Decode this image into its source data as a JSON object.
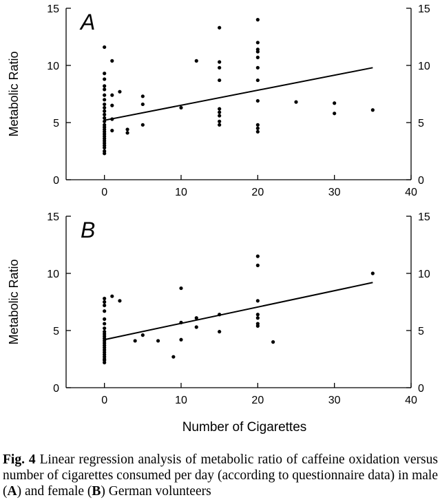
{
  "xlabel": "Number of Cigarettes",
  "caption": {
    "label": "Fig. 4",
    "text": " Linear regression analysis of metabolic ratio of caffeine oxidation versus number of cigarettes consumed per day (according to questionnaire data) in male (",
    "a": "A",
    "mid": ") and female (",
    "b": "B",
    "end": ") German volunteers"
  },
  "chart_data": [
    {
      "type": "scatter",
      "panel_label": "A",
      "ylabel": "Metabolic Ratio",
      "xlim": [
        -5,
        40
      ],
      "ylim": [
        0,
        15
      ],
      "x_ticks": [
        0,
        10,
        20,
        30,
        40
      ],
      "y_ticks": [
        0,
        5,
        10,
        15
      ],
      "points": [
        [
          0,
          11.6
        ],
        [
          0,
          9.3
        ],
        [
          0,
          8.8
        ],
        [
          0,
          8.2
        ],
        [
          0,
          7.9
        ],
        [
          0,
          7.4
        ],
        [
          0,
          7.0
        ],
        [
          0,
          6.6
        ],
        [
          0,
          6.3
        ],
        [
          0,
          6.0
        ],
        [
          0,
          5.7
        ],
        [
          0,
          5.4
        ],
        [
          0,
          5.1
        ],
        [
          0,
          4.8
        ],
        [
          0,
          4.6
        ],
        [
          0,
          4.4
        ],
        [
          0,
          4.2
        ],
        [
          0,
          4.0
        ],
        [
          0,
          3.8
        ],
        [
          0,
          3.6
        ],
        [
          0,
          3.4
        ],
        [
          0,
          3.2
        ],
        [
          0,
          3.0
        ],
        [
          0,
          2.8
        ],
        [
          0,
          2.5
        ],
        [
          0,
          2.3
        ],
        [
          1,
          10.4
        ],
        [
          1,
          7.4
        ],
        [
          1,
          6.5
        ],
        [
          1,
          5.3
        ],
        [
          1,
          4.3
        ],
        [
          2,
          7.7
        ],
        [
          3,
          4.4
        ],
        [
          3,
          4.1
        ],
        [
          5,
          7.3
        ],
        [
          5,
          6.6
        ],
        [
          5,
          4.8
        ],
        [
          10,
          6.3
        ],
        [
          12,
          10.4
        ],
        [
          15,
          13.3
        ],
        [
          15,
          10.3
        ],
        [
          15,
          9.8
        ],
        [
          15,
          8.7
        ],
        [
          15,
          6.2
        ],
        [
          15,
          5.9
        ],
        [
          15,
          5.6
        ],
        [
          15,
          5.1
        ],
        [
          15,
          4.8
        ],
        [
          20,
          14.0
        ],
        [
          20,
          12.0
        ],
        [
          20,
          11.4
        ],
        [
          20,
          11.2
        ],
        [
          20,
          10.7
        ],
        [
          20,
          9.8
        ],
        [
          20,
          8.7
        ],
        [
          20,
          6.9
        ],
        [
          20,
          4.8
        ],
        [
          20,
          4.5
        ],
        [
          20,
          4.2
        ],
        [
          25,
          6.8
        ],
        [
          30,
          6.7
        ],
        [
          30,
          5.8
        ],
        [
          35,
          6.1
        ]
      ],
      "regression": {
        "x": [
          0,
          35
        ],
        "y": [
          5.2,
          9.8
        ]
      }
    },
    {
      "type": "scatter",
      "panel_label": "B",
      "ylabel": "Metabolic Ratio",
      "xlim": [
        -5,
        40
      ],
      "ylim": [
        0,
        15
      ],
      "x_ticks": [
        0,
        10,
        20,
        30,
        40
      ],
      "y_ticks": [
        0,
        5,
        10,
        15
      ],
      "points": [
        [
          0,
          7.8
        ],
        [
          0,
          7.5
        ],
        [
          0,
          7.2
        ],
        [
          0,
          6.7
        ],
        [
          0,
          6.0
        ],
        [
          0,
          5.6
        ],
        [
          0,
          5.2
        ],
        [
          0,
          4.9
        ],
        [
          0,
          4.7
        ],
        [
          0,
          4.5
        ],
        [
          0,
          4.3
        ],
        [
          0,
          4.1
        ],
        [
          0,
          3.9
        ],
        [
          0,
          3.7
        ],
        [
          0,
          3.5
        ],
        [
          0,
          3.3
        ],
        [
          0,
          3.1
        ],
        [
          0,
          2.9
        ],
        [
          0,
          2.7
        ],
        [
          0,
          2.5
        ],
        [
          0,
          2.4
        ],
        [
          0,
          2.2
        ],
        [
          1,
          8.0
        ],
        [
          2,
          7.6
        ],
        [
          4,
          4.1
        ],
        [
          5,
          4.6
        ],
        [
          7,
          4.1
        ],
        [
          9,
          2.7
        ],
        [
          10,
          8.7
        ],
        [
          10,
          5.7
        ],
        [
          10,
          4.2
        ],
        [
          12,
          6.1
        ],
        [
          12,
          5.3
        ],
        [
          15,
          6.4
        ],
        [
          15,
          4.9
        ],
        [
          20,
          11.5
        ],
        [
          20,
          10.7
        ],
        [
          20,
          7.6
        ],
        [
          20,
          6.4
        ],
        [
          20,
          6.1
        ],
        [
          20,
          5.6
        ],
        [
          20,
          5.4
        ],
        [
          22,
          4.0
        ],
        [
          35,
          10.0
        ]
      ],
      "regression": {
        "x": [
          0,
          35
        ],
        "y": [
          4.2,
          9.2
        ]
      }
    }
  ]
}
